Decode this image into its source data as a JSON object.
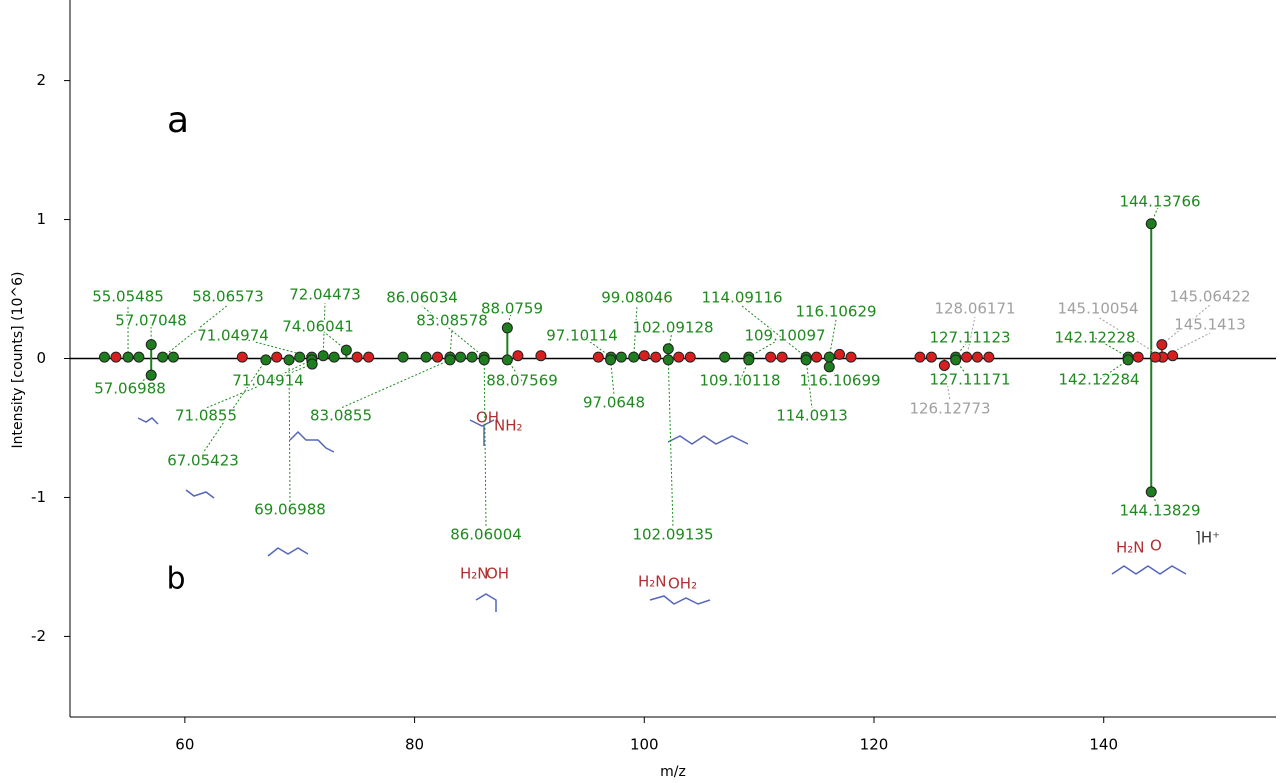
{
  "chart_data": {
    "type": "stem",
    "xlabel": "m/z",
    "ylabel": "Intensity [counts] (10^6)",
    "annotations": [
      "a",
      "b"
    ],
    "xlim": [
      50,
      155
    ],
    "ylim": [
      -2.58,
      2.58
    ],
    "xticks": [
      60,
      80,
      100,
      120,
      140
    ],
    "yticks": [
      -2,
      -1,
      0,
      1,
      2
    ],
    "series": [
      {
        "color": "#1e7d1e",
        "x": [
          55.05485,
          57.07048,
          58.06573,
          71.04974,
          72.04473,
          74.06041,
          86.06034,
          83.08578,
          88.0759,
          97.10114,
          99.08046,
          102.09128,
          114.09116,
          109.10097,
          116.10629,
          127.11123,
          142.12228,
          144.13766
        ],
        "values": [
          0.01,
          0.1,
          0.01,
          0.01,
          0.02,
          0.06,
          0.01,
          0.01,
          0.22,
          0.01,
          0.01,
          0.07,
          0.01,
          0.01,
          0.01,
          0.01,
          0.01,
          0.97
        ]
      },
      {
        "color": "#1e7d1e",
        "x": [
          57.06988,
          71.04914,
          71.0855,
          67.05423,
          69.06988,
          83.0855,
          88.07569,
          86.06004,
          97.0648,
          102.09135,
          109.10118,
          116.10699,
          114.0913,
          127.11171,
          142.12284,
          144.13829
        ],
        "values": [
          -0.12,
          -0.01,
          -0.04,
          -0.01,
          -0.01,
          -0.01,
          -0.01,
          -0.01,
          -0.01,
          -0.01,
          -0.01,
          -0.06,
          -0.01,
          -0.01,
          -0.01,
          -0.96
        ]
      },
      {
        "color": "#1e7d1e",
        "x": [
          53,
          56,
          59,
          70,
          73,
          79,
          81,
          84,
          85,
          98,
          107
        ],
        "values": [
          0.01,
          0.01,
          0.01,
          0.01,
          0.01,
          0.01,
          0.01,
          0.01,
          0.01,
          0.01,
          0.01
        ]
      },
      {
        "color": "#d62020",
        "x": [
          128.06171,
          145.10054,
          145.06422,
          145.1413,
          126.12773
        ],
        "values": [
          0.01,
          0.01,
          0.1,
          0.01,
          -0.05
        ]
      },
      {
        "color": "#d62020",
        "x": [
          54,
          65,
          68,
          75,
          76,
          82,
          89,
          91,
          96,
          100,
          101,
          103,
          104,
          111,
          112,
          115,
          117,
          118,
          124,
          125,
          129,
          130,
          143,
          144.5,
          146
        ],
        "values": [
          0.01,
          0.01,
          0.01,
          0.01,
          0.01,
          0.01,
          0.02,
          0.02,
          0.01,
          0.02,
          0.01,
          0.01,
          0.01,
          0.01,
          0.01,
          0.01,
          0.03,
          0.01,
          0.01,
          0.01,
          0.01,
          0.01,
          0.01,
          0.01,
          0.02
        ]
      }
    ]
  }
}
